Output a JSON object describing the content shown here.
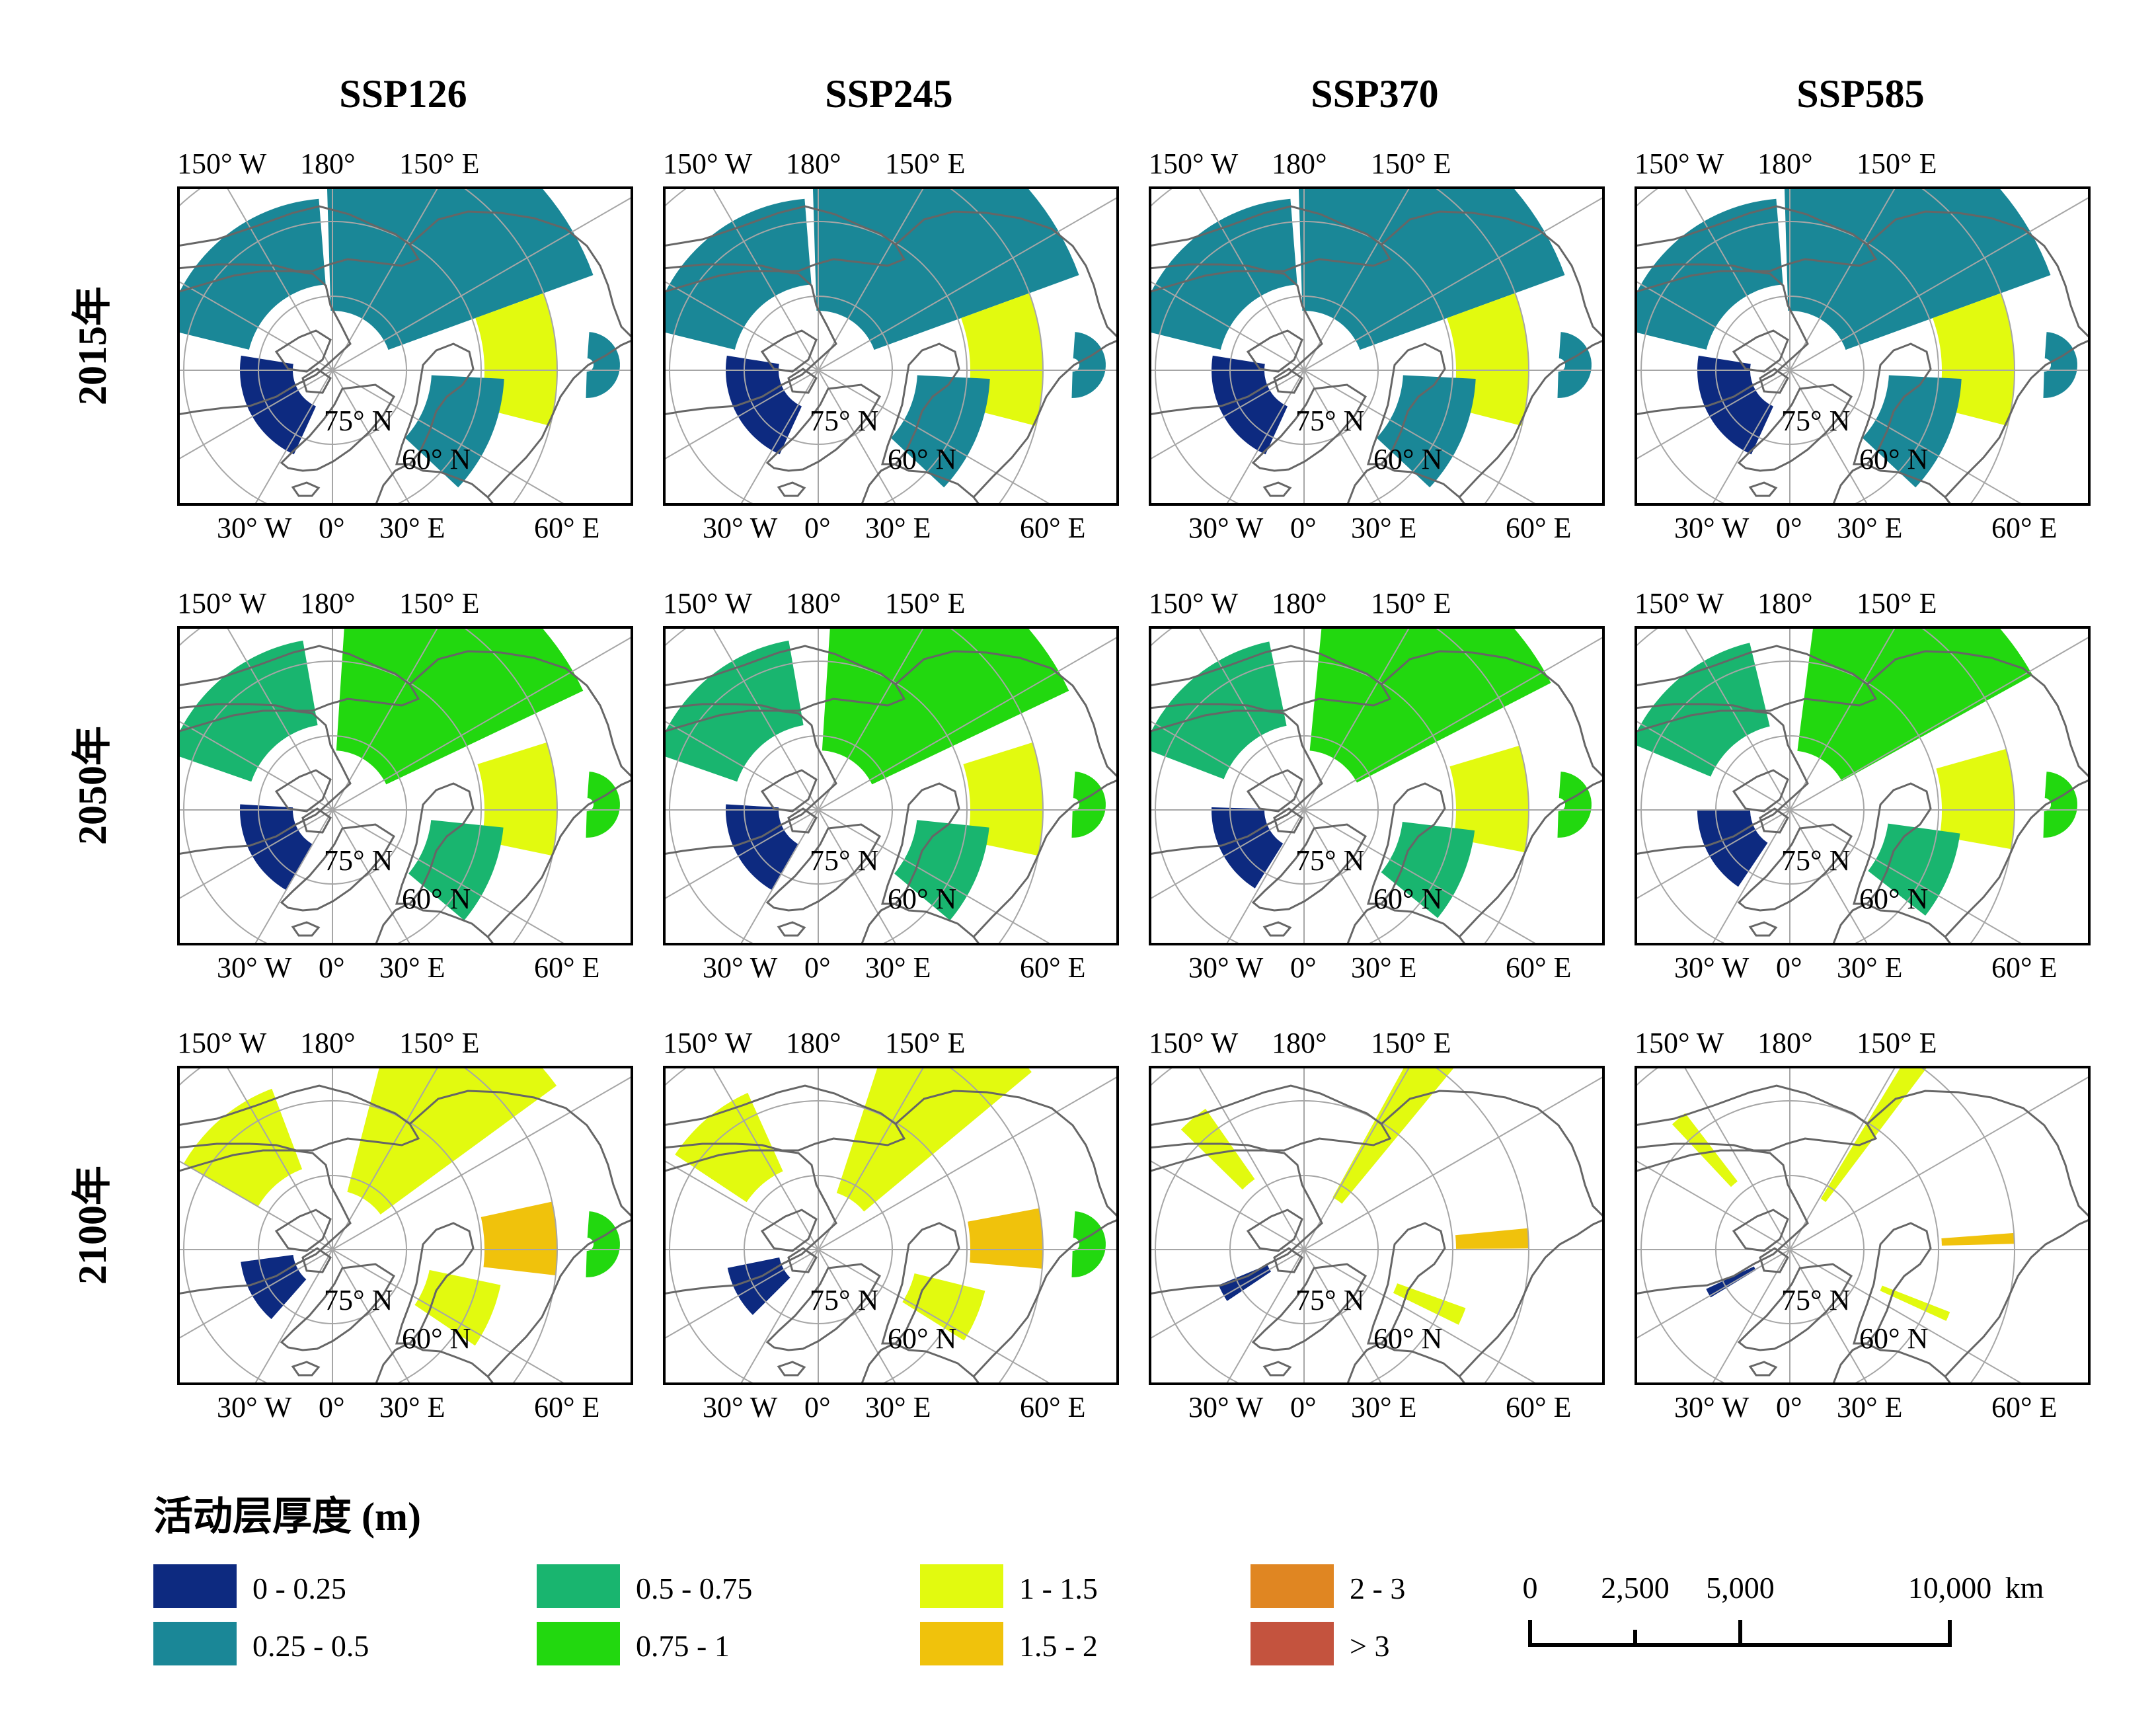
{
  "columns": [
    "SSP126",
    "SSP245",
    "SSP370",
    "SSP585"
  ],
  "rows": [
    "2015年",
    "2050年",
    "2100年"
  ],
  "graticule_labels": {
    "top": [
      "150° W",
      "180°",
      "150° E"
    ],
    "bottom": [
      "30° W",
      "0°",
      "30° E",
      "60° E"
    ],
    "inner": [
      "75° N",
      "60° N"
    ]
  },
  "colors": {
    "land_outline": "#666666",
    "graticule": "#a6a6a6",
    "frame": "#000000"
  },
  "map_data": {
    "variable": "活动层厚度",
    "coverage_fraction": {
      "2015年": [
        1.0,
        1.0,
        1.0,
        1.0
      ],
      "2050年": [
        0.85,
        0.85,
        0.8,
        0.75
      ],
      "2100年": [
        0.55,
        0.45,
        0.15,
        0.08
      ]
    },
    "dominant_class": {
      "2015年": [
        "0.25 - 0.5",
        "0.25 - 0.5",
        "0.25 - 0.5",
        "0.25 - 0.5"
      ],
      "2050年": [
        "0.5 - 0.75",
        "0.75 - 1",
        "0.75 - 1",
        "0.75 - 1"
      ],
      "2100年": [
        "1 - 1.5",
        "1 - 1.5",
        "1 - 1.5",
        "1 - 1.5"
      ]
    }
  },
  "legend": {
    "title": "活动层厚度 (m)",
    "items": [
      {
        "label": "0 - 0.25",
        "color": "#0d2a80"
      },
      {
        "label": "0.25 - 0.5",
        "color": "#1a8797"
      },
      {
        "label": "0.5 - 0.75",
        "color": "#19b56f"
      },
      {
        "label": "0.75 - 1",
        "color": "#22d80f"
      },
      {
        "label": "1 - 1.5",
        "color": "#e2fa0f"
      },
      {
        "label": "1.5 - 2",
        "color": "#f0c20c"
      },
      {
        "label": "2 - 3",
        "color": "#e08622"
      },
      {
        "label": "> 3",
        "color": "#c4533e"
      }
    ]
  },
  "scale_bar": {
    "labels": [
      "0",
      "2,500",
      "5,000",
      "10,000"
    ],
    "unit": "km",
    "values": [
      0,
      2500,
      5000,
      10000
    ]
  }
}
